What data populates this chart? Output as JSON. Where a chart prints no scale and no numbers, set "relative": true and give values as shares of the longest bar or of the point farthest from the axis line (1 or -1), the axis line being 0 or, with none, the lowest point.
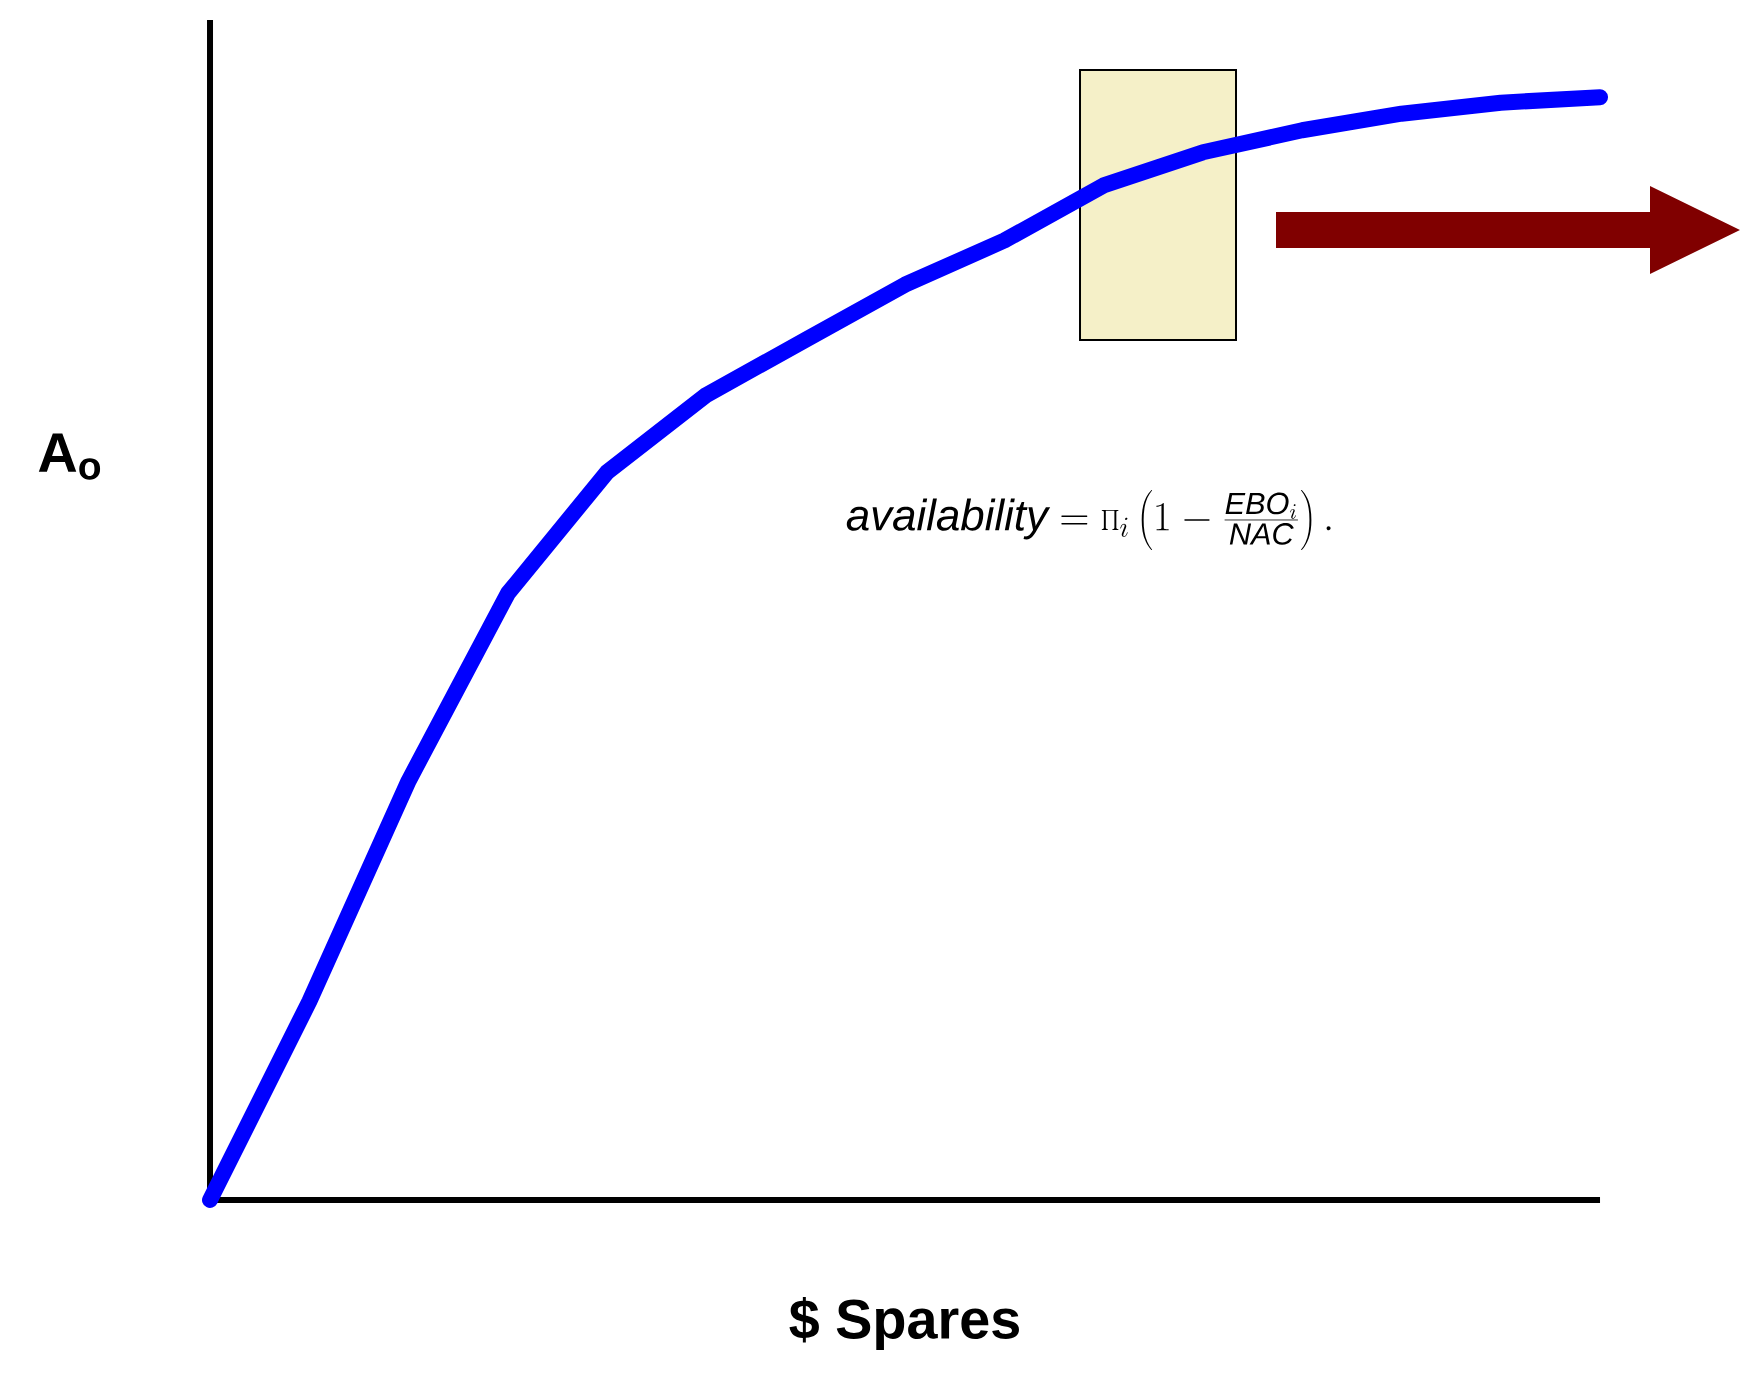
{
  "chart_data": {
    "type": "line",
    "relative": true,
    "xlabel": "$ Spares",
    "ylabel": "A$_{o}$",
    "categories": [
      null,
      null,
      null,
      null,
      null,
      null,
      null,
      null,
      null,
      null,
      null,
      null,
      null,
      null,
      null
    ],
    "values": [
      0,
      0.18,
      0.38,
      0.55,
      0.66,
      0.73,
      0.78,
      0.83,
      0.87,
      0.92,
      0.95,
      0.97,
      0.985,
      0.995,
      1
    ],
    "color": "#0000ff",
    "annotations": [
      "\\mathit{availability} = \\prod_{i} \\left(1 - \\frac{\\mathit{EBO}_{i}}{\\mathit{NAC}}\\right)."
    ]
  }
}
